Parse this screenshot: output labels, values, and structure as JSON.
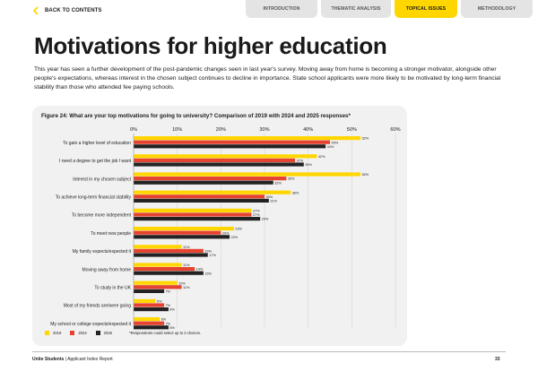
{
  "nav": {
    "back_label": "BACK TO CONTENTS",
    "tabs": [
      {
        "label": "INTRODUCTION",
        "active": false
      },
      {
        "label": "THEMATIC ANALYSIS",
        "active": false
      },
      {
        "label": "TOPICAL ISSUES",
        "active": true
      },
      {
        "label": "METHODOLOGY",
        "active": false
      }
    ]
  },
  "page": {
    "title": "Motivations for higher education",
    "intro": "This year has seen a further development of the post-pandemic changes seen in last year's survey. Moving away from home is becoming a stronger motivator, alongside other people's expectations, whereas interest in the chosen subject continues to decline in importance. State school applicants were more likely to be motivated by long-term financial stability than those who attended fee paying schools."
  },
  "figure": {
    "title": "Figure 24: What are your top motivations for going to university? Comparison of 2019 with 2024 and 2025 responses*",
    "footnote": "*Respondents could select up to 3 choices."
  },
  "colors": {
    "y2019": "#ffd600",
    "y2024": "#e5432f",
    "y2025": "#222222",
    "accent": "#ffd600"
  },
  "chart_data": {
    "type": "bar",
    "orientation": "horizontal",
    "categories": [
      "To gain a higher level of education",
      "I need a degree to get the job I want",
      "Interest in my chosen subject",
      "To achieve long-term financial stability",
      "To become more independent",
      "To meet new people",
      "My family expects/expected it",
      "Moving away from home",
      "To study in the UK",
      "Most of my friends are/were going",
      "My school or college expects/expected it"
    ],
    "series": [
      {
        "name": "2019",
        "values": [
          52,
          42,
          52,
          36,
          27,
          23,
          11,
          11,
          10,
          5,
          6
        ]
      },
      {
        "name": "2024",
        "values": [
          45,
          37,
          35,
          30,
          27,
          20,
          16,
          14,
          11,
          7,
          7
        ]
      },
      {
        "name": "2025",
        "values": [
          44,
          39,
          32,
          31,
          29,
          22,
          17,
          16,
          7,
          8,
          8
        ]
      }
    ],
    "value_labels": {
      "2019": [
        "52%",
        "42%",
        "52%",
        "36%",
        "27%",
        "23%",
        "11%",
        "11%",
        "10%",
        "5%",
        "6%"
      ],
      "2024": [
        "45%",
        "37%",
        "35%",
        "30%",
        "27%",
        "20%",
        "16%",
        "14%",
        "11%",
        "7%",
        "7%"
      ],
      "2025": [
        "44%",
        "39%",
        "32%",
        "31%",
        "29%",
        "22%",
        "17%",
        "16%",
        "7%",
        "8%",
        "8%"
      ]
    },
    "xticks": [
      "0%",
      "10%",
      "20%",
      "30%",
      "40%",
      "50%",
      "60%"
    ],
    "xlim": [
      0,
      60
    ],
    "grid": true,
    "legend": "bottom-left"
  },
  "footer": {
    "brand": "Unite Students",
    "separator": "|",
    "report": "Applicant Index Report",
    "page": "33"
  }
}
